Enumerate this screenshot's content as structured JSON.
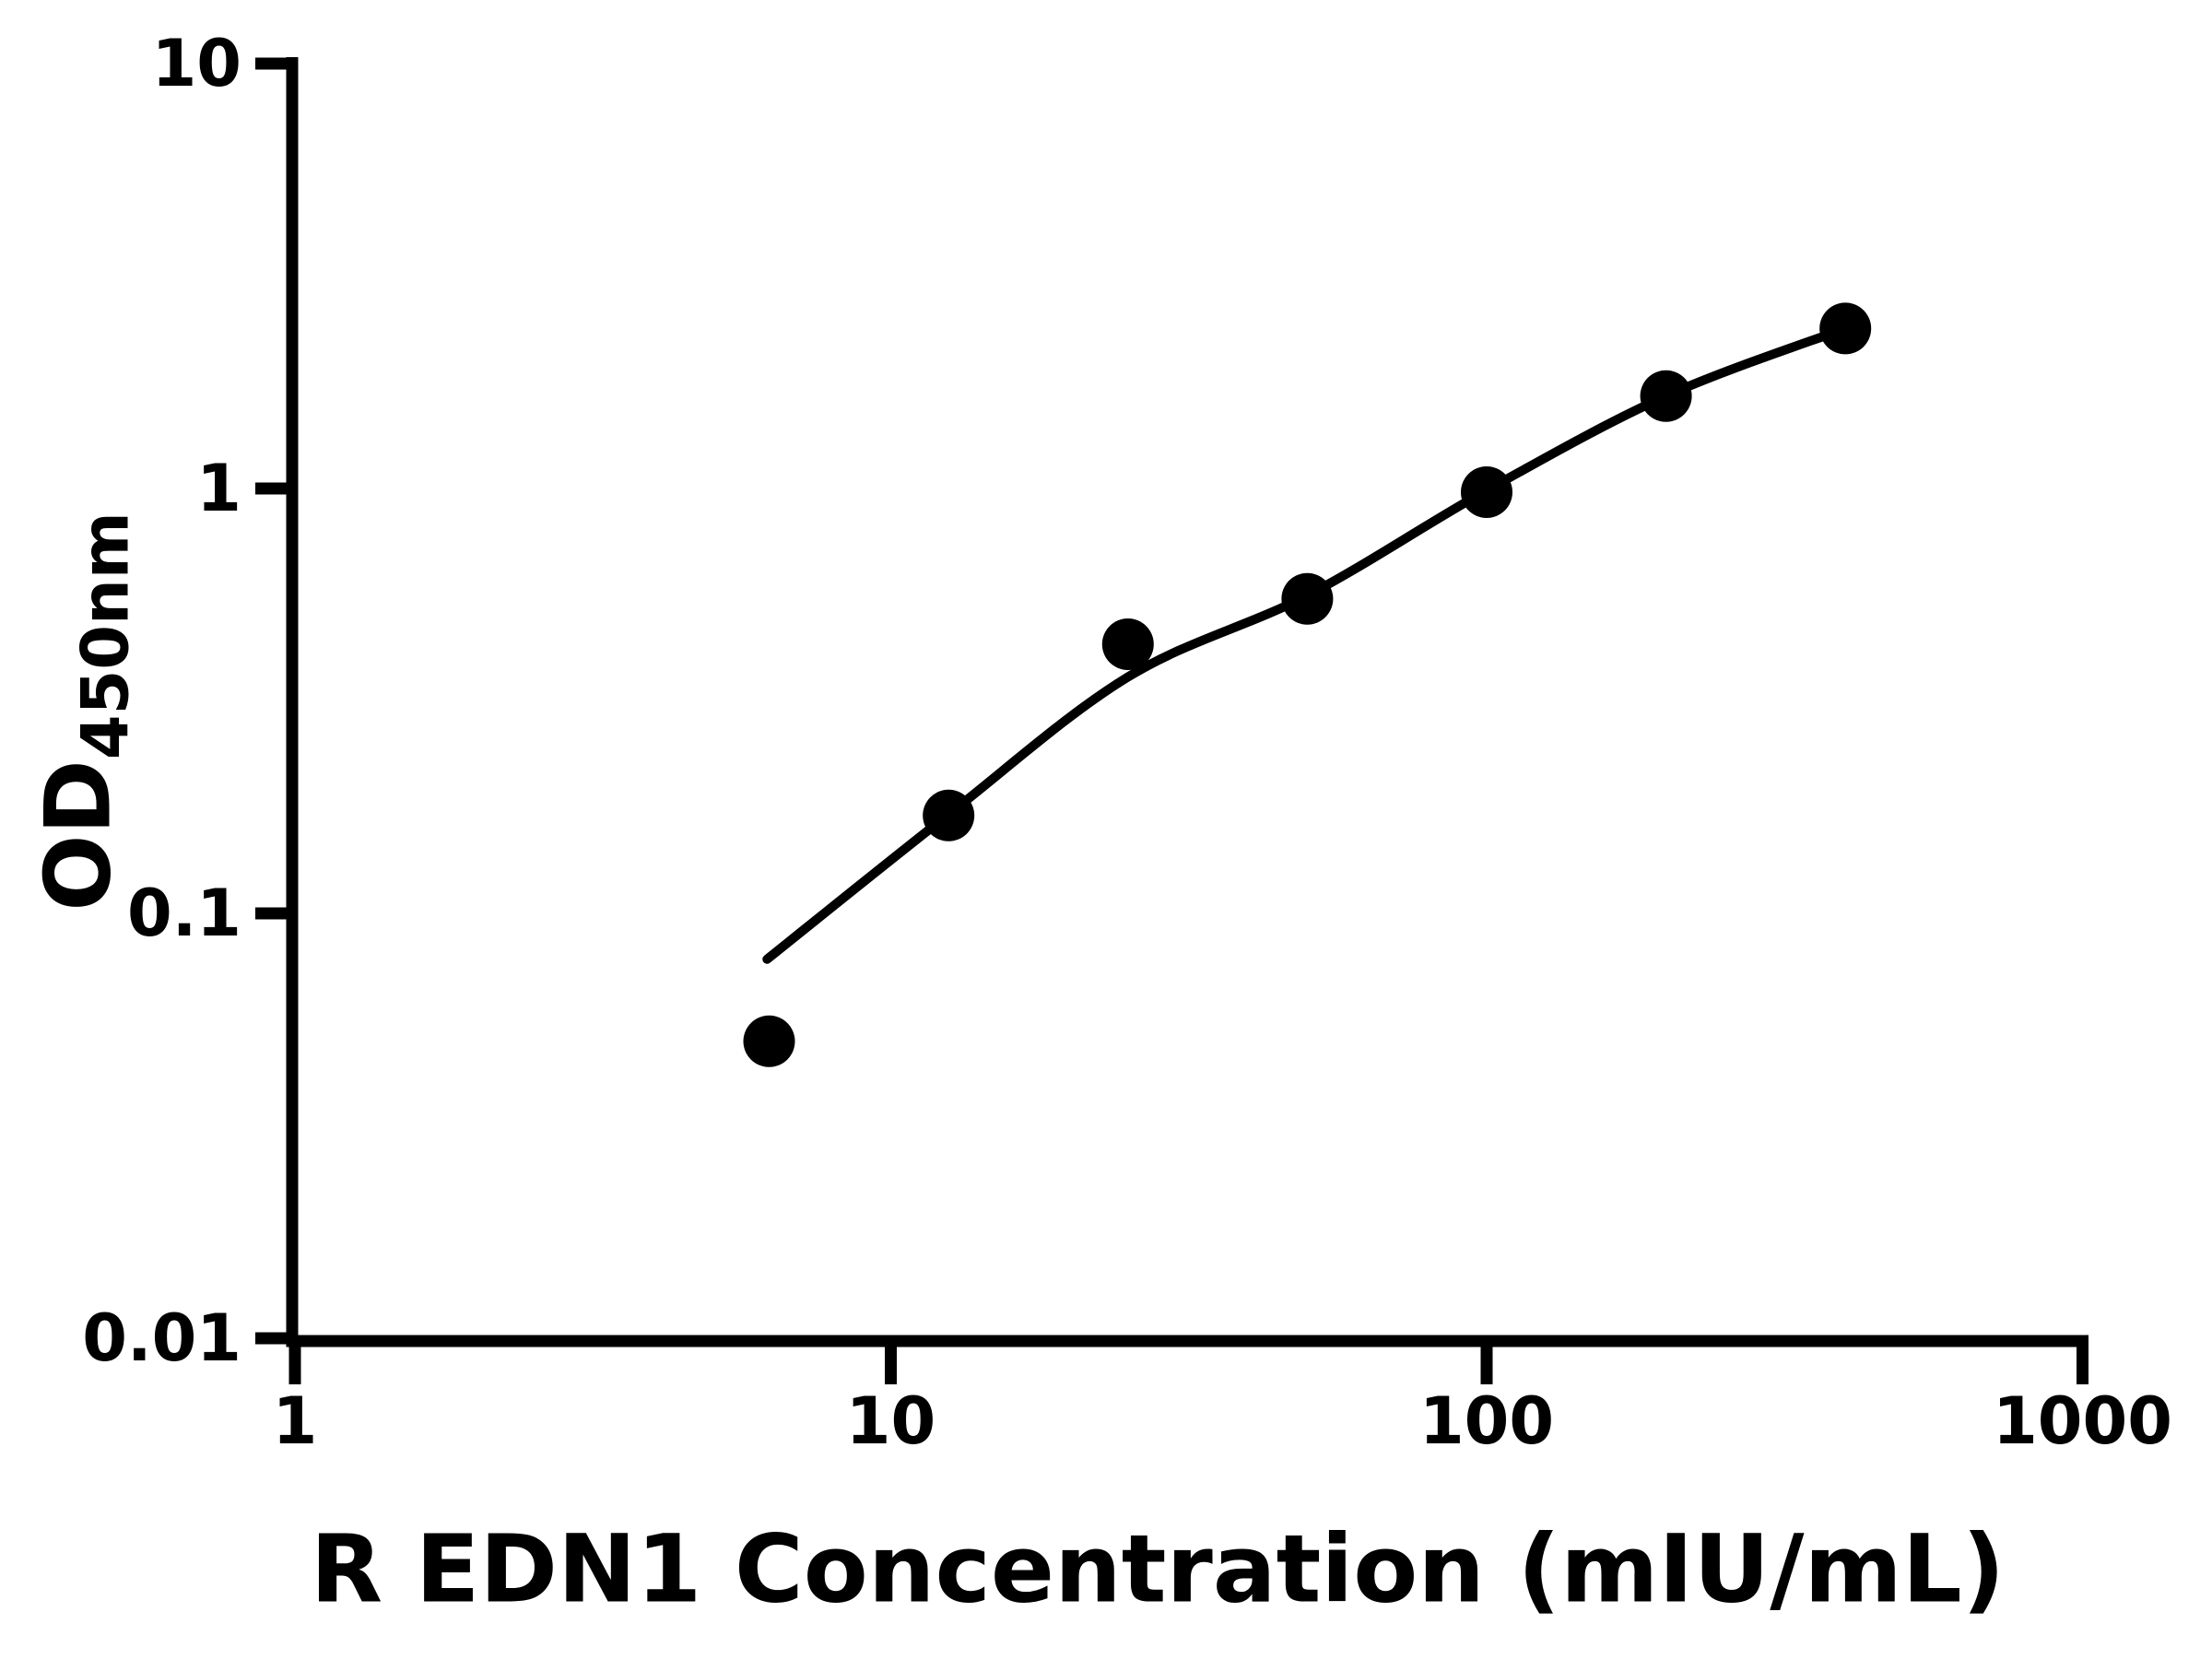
{
  "chart_data": {
    "type": "scatter",
    "title": "",
    "xlabel": "R EDN1 Concentration (mIU/mL)",
    "ylabel_main": "OD",
    "ylabel_sub": "450nm",
    "x_scale": "log",
    "y_scale": "log",
    "xlim": [
      1,
      1000
    ],
    "ylim": [
      0.01,
      10
    ],
    "grid": false,
    "legend": null,
    "colors": {
      "foreground": "#000000",
      "background": "#ffffff"
    },
    "x_ticks": [
      {
        "value": 1,
        "label": "1"
      },
      {
        "value": 10,
        "label": "10"
      },
      {
        "value": 100,
        "label": "100"
      },
      {
        "value": 1000,
        "label": "1000"
      }
    ],
    "y_ticks": [
      {
        "value": 10,
        "label": "10"
      },
      {
        "value": 1,
        "label": "1"
      },
      {
        "value": 0.1,
        "label": "0.1"
      },
      {
        "value": 0.01,
        "label": "0.01"
      }
    ],
    "series": [
      {
        "name": "standards",
        "type": "scatter",
        "marker": "filled-circle",
        "color": "#000000",
        "points": [
          {
            "x": 6.25,
            "y": 0.05
          },
          {
            "x": 12.5,
            "y": 0.17
          },
          {
            "x": 25,
            "y": 0.43
          },
          {
            "x": 50,
            "y": 0.55
          },
          {
            "x": 100,
            "y": 0.98
          },
          {
            "x": 200,
            "y": 1.65
          },
          {
            "x": 400,
            "y": 2.38
          }
        ]
      },
      {
        "name": "fitted-curve",
        "type": "line",
        "color": "#000000",
        "points": [
          {
            "x": 6.2,
            "y": 0.078
          },
          {
            "x": 12.5,
            "y": 0.171
          },
          {
            "x": 25,
            "y": 0.36
          },
          {
            "x": 50,
            "y": 0.56
          },
          {
            "x": 100,
            "y": 0.99
          },
          {
            "x": 200,
            "y": 1.65
          },
          {
            "x": 400,
            "y": 2.38
          }
        ]
      }
    ]
  }
}
